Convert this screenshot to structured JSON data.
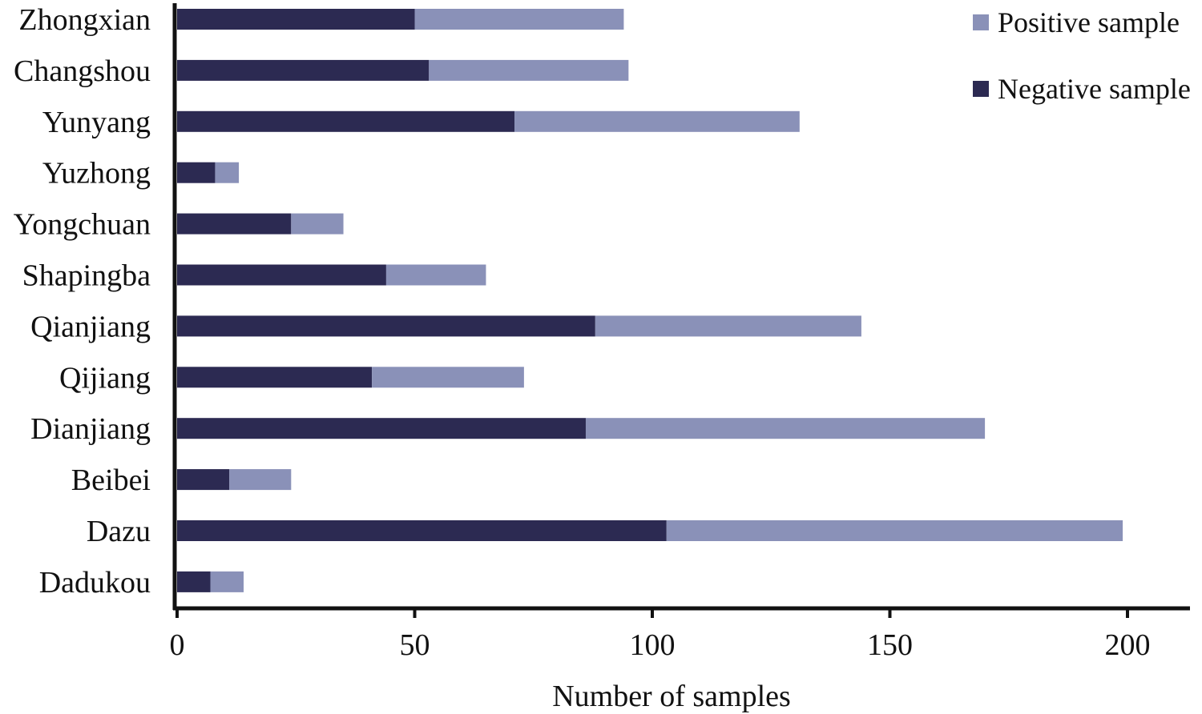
{
  "chart_data": {
    "type": "bar",
    "orientation": "horizontal",
    "stacked": true,
    "title": "",
    "xlabel": "Number of samples",
    "ylabel": "",
    "xlim": [
      0,
      212
    ],
    "xticks": [
      0,
      50,
      100,
      150,
      200
    ],
    "grid": false,
    "legend_position": "top-right",
    "categories": [
      "Zhongxian",
      "Changshou",
      "Yunyang",
      "Yuzhong",
      "Yongchuan",
      "Shapingba",
      "Qianjiang",
      "Qijiang",
      "Dianjiang",
      "Beibei",
      "Dazu",
      "Dadukou"
    ],
    "series": [
      {
        "name": "Negative sample",
        "color": "#2c2a52",
        "values": [
          50,
          53,
          71,
          8,
          24,
          44,
          88,
          41,
          86,
          11,
          103,
          7
        ]
      },
      {
        "name": "Positive sample",
        "color": "#8a91b8",
        "values": [
          44,
          42,
          60,
          5,
          11,
          21,
          56,
          32,
          84,
          13,
          96,
          7
        ]
      }
    ],
    "legend": [
      {
        "label": "Positive sample",
        "color": "#8a91b8"
      },
      {
        "label": "Negative sample",
        "color": "#2c2a52"
      }
    ]
  }
}
